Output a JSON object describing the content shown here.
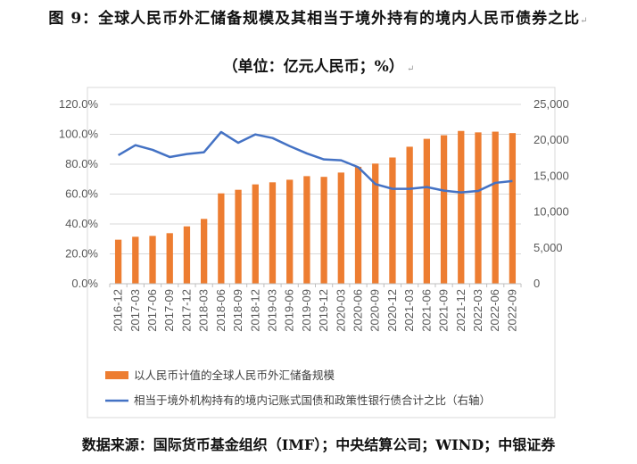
{
  "title": "图 9：全球人民币外汇储备规模及其相当于境外持有的境内人民币债券之比",
  "subtitle": "（单位：亿元人民币；%）",
  "source": "数据来源：国际货币基金组织（IMF）；中央结算公司；WIND；中银证券",
  "chart_data": {
    "type": "bar+line",
    "categories": [
      "2016-12",
      "2017-03",
      "2017-06",
      "2017-09",
      "2017-12",
      "2018-03",
      "2018-06",
      "2018-09",
      "2018-12",
      "2019-03",
      "2019-06",
      "2019-09",
      "2019-12",
      "2020-03",
      "2020-06",
      "2020-09",
      "2020-12",
      "2021-03",
      "2021-06",
      "2021-09",
      "2021-12",
      "2022-03",
      "2022-06",
      "2022-09"
    ],
    "series": [
      {
        "name": "以人民币计值的全球人民币外汇储备规模",
        "type": "bar",
        "axis": "right",
        "color": "#ED7D31",
        "values": [
          6140,
          6550,
          6670,
          7050,
          8000,
          9040,
          12600,
          13100,
          13850,
          14140,
          14500,
          15000,
          14900,
          15500,
          16300,
          16750,
          17600,
          19100,
          20200,
          20700,
          21300,
          21100,
          21200,
          21000
        ]
      },
      {
        "name": "相当于境外机构持有的境内记账式国债和政策性银行债合计之比（右轴）",
        "type": "line",
        "axis": "left",
        "color": "#4472C4",
        "values": [
          86.0,
          92.7,
          89.6,
          84.8,
          86.8,
          88.0,
          101.5,
          94.3,
          99.9,
          97.5,
          92.1,
          87.2,
          83.2,
          82.6,
          78.0,
          66.7,
          63.5,
          63.5,
          64.7,
          62.3,
          61.1,
          62.1,
          67.5,
          68.7
        ]
      }
    ],
    "left_axis": {
      "ylim": [
        0,
        120
      ],
      "ticks": [
        "0.0%",
        "20.0%",
        "40.0%",
        "60.0%",
        "80.0%",
        "100.0%",
        "120.0%"
      ]
    },
    "right_axis": {
      "ylim": [
        0,
        25000
      ],
      "ticks": [
        "0",
        "5,000",
        "10,000",
        "15,000",
        "20,000",
        "25,000"
      ]
    },
    "grid": true,
    "legend": "bottom"
  }
}
